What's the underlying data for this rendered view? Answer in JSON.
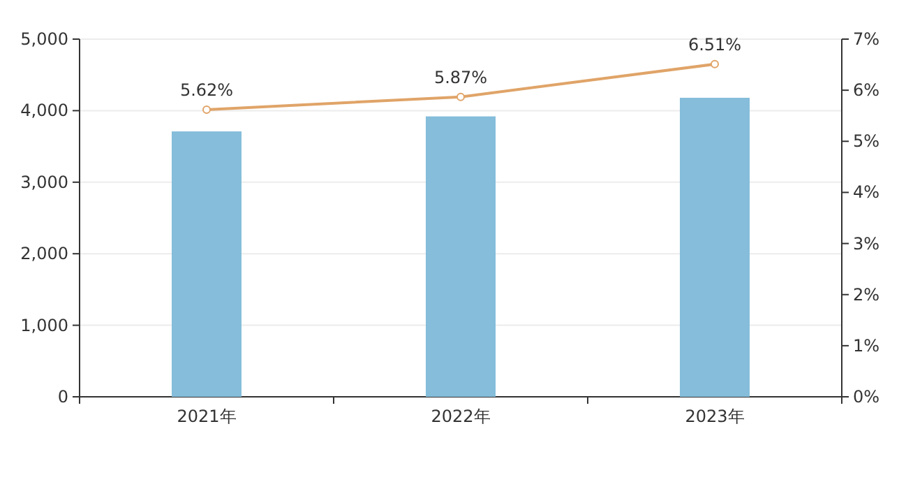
{
  "chart_data": {
    "type": "bar",
    "categories": [
      "2021年",
      "2022年",
      "2023年"
    ],
    "series": [
      {
        "color": "#85bddb",
        "values": [
          3710,
          3920,
          4180
        ]
      },
      {
        "type": "line",
        "axis": "y2",
        "color": "#e0a468",
        "marker": "circle",
        "values": [
          5.62,
          5.87,
          6.51
        ],
        "value_labels": [
          "5.62%",
          "5.87%",
          "6.51%"
        ]
      }
    ],
    "ylim": [
      0,
      5000
    ],
    "yticks": [
      0,
      {
        "value": 1000,
        "label": "1,000"
      },
      {
        "value": 2000,
        "label": "2,000"
      },
      {
        "value": 3000,
        "label": "3,000"
      },
      {
        "value": 4000,
        "label": "4,000"
      },
      {
        "value": 5000,
        "label": "5,000"
      }
    ],
    "y2lim": [
      0,
      7
    ],
    "y2ticks": [
      {
        "value": 0,
        "label": "0%"
      },
      {
        "value": 1,
        "label": "1%"
      },
      {
        "value": 2,
        "label": "2%"
      },
      {
        "value": 3,
        "label": "3%"
      },
      {
        "value": 4,
        "label": "4%"
      },
      {
        "value": 5,
        "label": "5%"
      },
      {
        "value": 6,
        "label": "6%"
      },
      {
        "value": 7,
        "label": "7%"
      }
    ],
    "grid": "y"
  }
}
